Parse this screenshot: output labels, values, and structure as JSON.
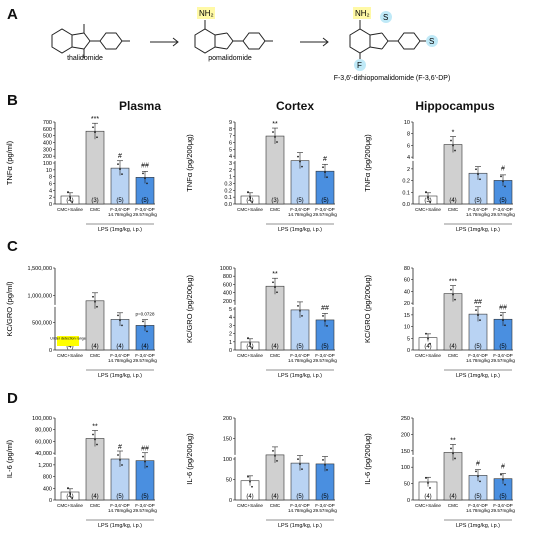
{
  "panels": {
    "A": "A",
    "B": "B",
    "C": "C",
    "D": "D"
  },
  "molecules": {
    "thalidomide": "thalidomide",
    "pomalidomide": "pomalidomide",
    "f36dp": "F-3,6′-dithiopomalidomide (F-3,6′-DP)",
    "atoms": {
      "nh2": "NH₂",
      "s": "S",
      "f": "F",
      "o": "O",
      "n": "N"
    }
  },
  "columns": {
    "plasma": "Plasma",
    "cortex": "Cortex",
    "hippocampus": "Hippocampus"
  },
  "bar_labels": [
    "CMC+Saline",
    "CMC",
    "F-3,6′-DP\n14.78mg/kg",
    "F-3,6′-DP\n29.57mg/kg"
  ],
  "lps_label": "LPS (1mg/kg, i.p.)",
  "colors": {
    "saline": "#ffffff",
    "cmc": "#d0d0d0",
    "low": "#b9d3f3",
    "high": "#4a8fe0",
    "highlight": "#fff9a6",
    "axis": "#222222"
  },
  "chart_data": [
    {
      "id": "B-plasma",
      "type": "bar",
      "ylabel": "TNFα (pg/ml)",
      "ticks": [
        "0",
        "2",
        "4",
        "6",
        "8",
        "10",
        "700",
        "600",
        "500",
        "400",
        "300",
        "200",
        "100",
        "0"
      ],
      "tick_labels": [
        "0",
        "2",
        "4",
        "6",
        "8",
        "10",
        "100",
        "200",
        "300",
        "400",
        "500",
        "600",
        "700"
      ],
      "values": [
        6,
        710,
        350,
        260
      ],
      "n": [
        "(4)",
        "(3)",
        "(5)",
        "(5)"
      ],
      "sig": [
        "",
        "***",
        "#",
        "##"
      ]
    },
    {
      "id": "B-cortex",
      "type": "bar",
      "ylabel": "TNFα (pg/200μg)",
      "tick_labels": [
        "0.0",
        "0.1",
        "0.2",
        "0.3",
        "1",
        "2",
        "3",
        "4",
        "5",
        "6",
        "7",
        "8",
        "9"
      ],
      "values": [
        0.13,
        5.8,
        3.7,
        2.8
      ],
      "n": [
        "(4)",
        "(3)",
        "(5)",
        "(5)"
      ],
      "sig": [
        "",
        "**",
        "",
        "#"
      ]
    },
    {
      "id": "B-hippo",
      "type": "bar",
      "ylabel": "TNFα (pg/200μg)",
      "tick_labels": [
        "0.0",
        "0.1",
        "0.2",
        "2",
        "4",
        "6",
        "8",
        "10"
      ],
      "values": [
        0.12,
        5.8,
        3.0,
        2.3
      ],
      "n": [
        "(3)",
        "(4)",
        "(5)",
        "(5)"
      ],
      "sig": [
        "",
        "*",
        "",
        "#"
      ]
    },
    {
      "id": "C-plasma",
      "type": "bar",
      "ylabel": "KC/GRO (pg/ml)",
      "tick_labels": [
        "0",
        "500,000",
        "1,000,000",
        "1,500,000"
      ],
      "values": [
        0,
        900000,
        560000,
        450000
      ],
      "n": [
        "(4)",
        "(4)",
        "(4)",
        "(4)"
      ],
      "sig": [
        "",
        "",
        "",
        "p=0.0728"
      ],
      "annotation": "Under detection range"
    },
    {
      "id": "C-cortex",
      "type": "bar",
      "ylabel": "KC/GRO (pg/200μg)",
      "tick_labels": [
        "0",
        "1",
        "2",
        "3",
        "4",
        "5",
        "200",
        "400",
        "600",
        "800",
        "1000"
      ],
      "values": [
        2.5,
        700,
        440,
        330
      ],
      "n": [
        "(4)",
        "(4)",
        "(5)",
        "(5)"
      ],
      "sig": [
        "",
        "**",
        "",
        "##"
      ]
    },
    {
      "id": "C-hippo",
      "type": "bar",
      "ylabel": "KC/GRO (pg/200μg)",
      "tick_labels": [
        "0",
        "5",
        "10",
        "15",
        "20",
        "40",
        "60",
        "80"
      ],
      "values": [
        12,
        55,
        35,
        30
      ],
      "n": [
        "(4)",
        "(4)",
        "(5)",
        "(5)"
      ],
      "sig": [
        "",
        "***",
        "##",
        "##"
      ]
    },
    {
      "id": "D-plasma",
      "type": "bar",
      "ylabel": "IL-6 (pg/ml)",
      "tick_labels": [
        "0",
        "400",
        "800",
        "1,200",
        "40,000",
        "60,000",
        "80,000",
        "100,000"
      ],
      "values": [
        500,
        75000,
        50000,
        48000
      ],
      "n": [
        "(4)",
        "(4)",
        "(5)",
        "(5)"
      ],
      "sig": [
        "",
        "**",
        "#",
        "##"
      ]
    },
    {
      "id": "D-cortex",
      "type": "bar",
      "ylabel": "IL-6 (pg/200μg)",
      "tick_labels": [
        "0",
        "50",
        "100",
        "150",
        "200"
      ],
      "values": [
        47,
        110,
        90,
        88
      ],
      "n": [
        "(4)",
        "(4)",
        "(5)",
        "(5)"
      ],
      "sig": [
        "",
        "",
        "",
        ""
      ]
    },
    {
      "id": "D-hippo",
      "type": "bar",
      "ylabel": "IL-6 (pg/200μg)",
      "tick_labels": [
        "0",
        "50",
        "100",
        "150",
        "200",
        "250"
      ],
      "values": [
        55,
        145,
        75,
        65
      ],
      "n": [
        "(4)",
        "(4)",
        "(5)",
        "(5)"
      ],
      "sig": [
        "",
        "**",
        "#",
        "#"
      ]
    }
  ]
}
